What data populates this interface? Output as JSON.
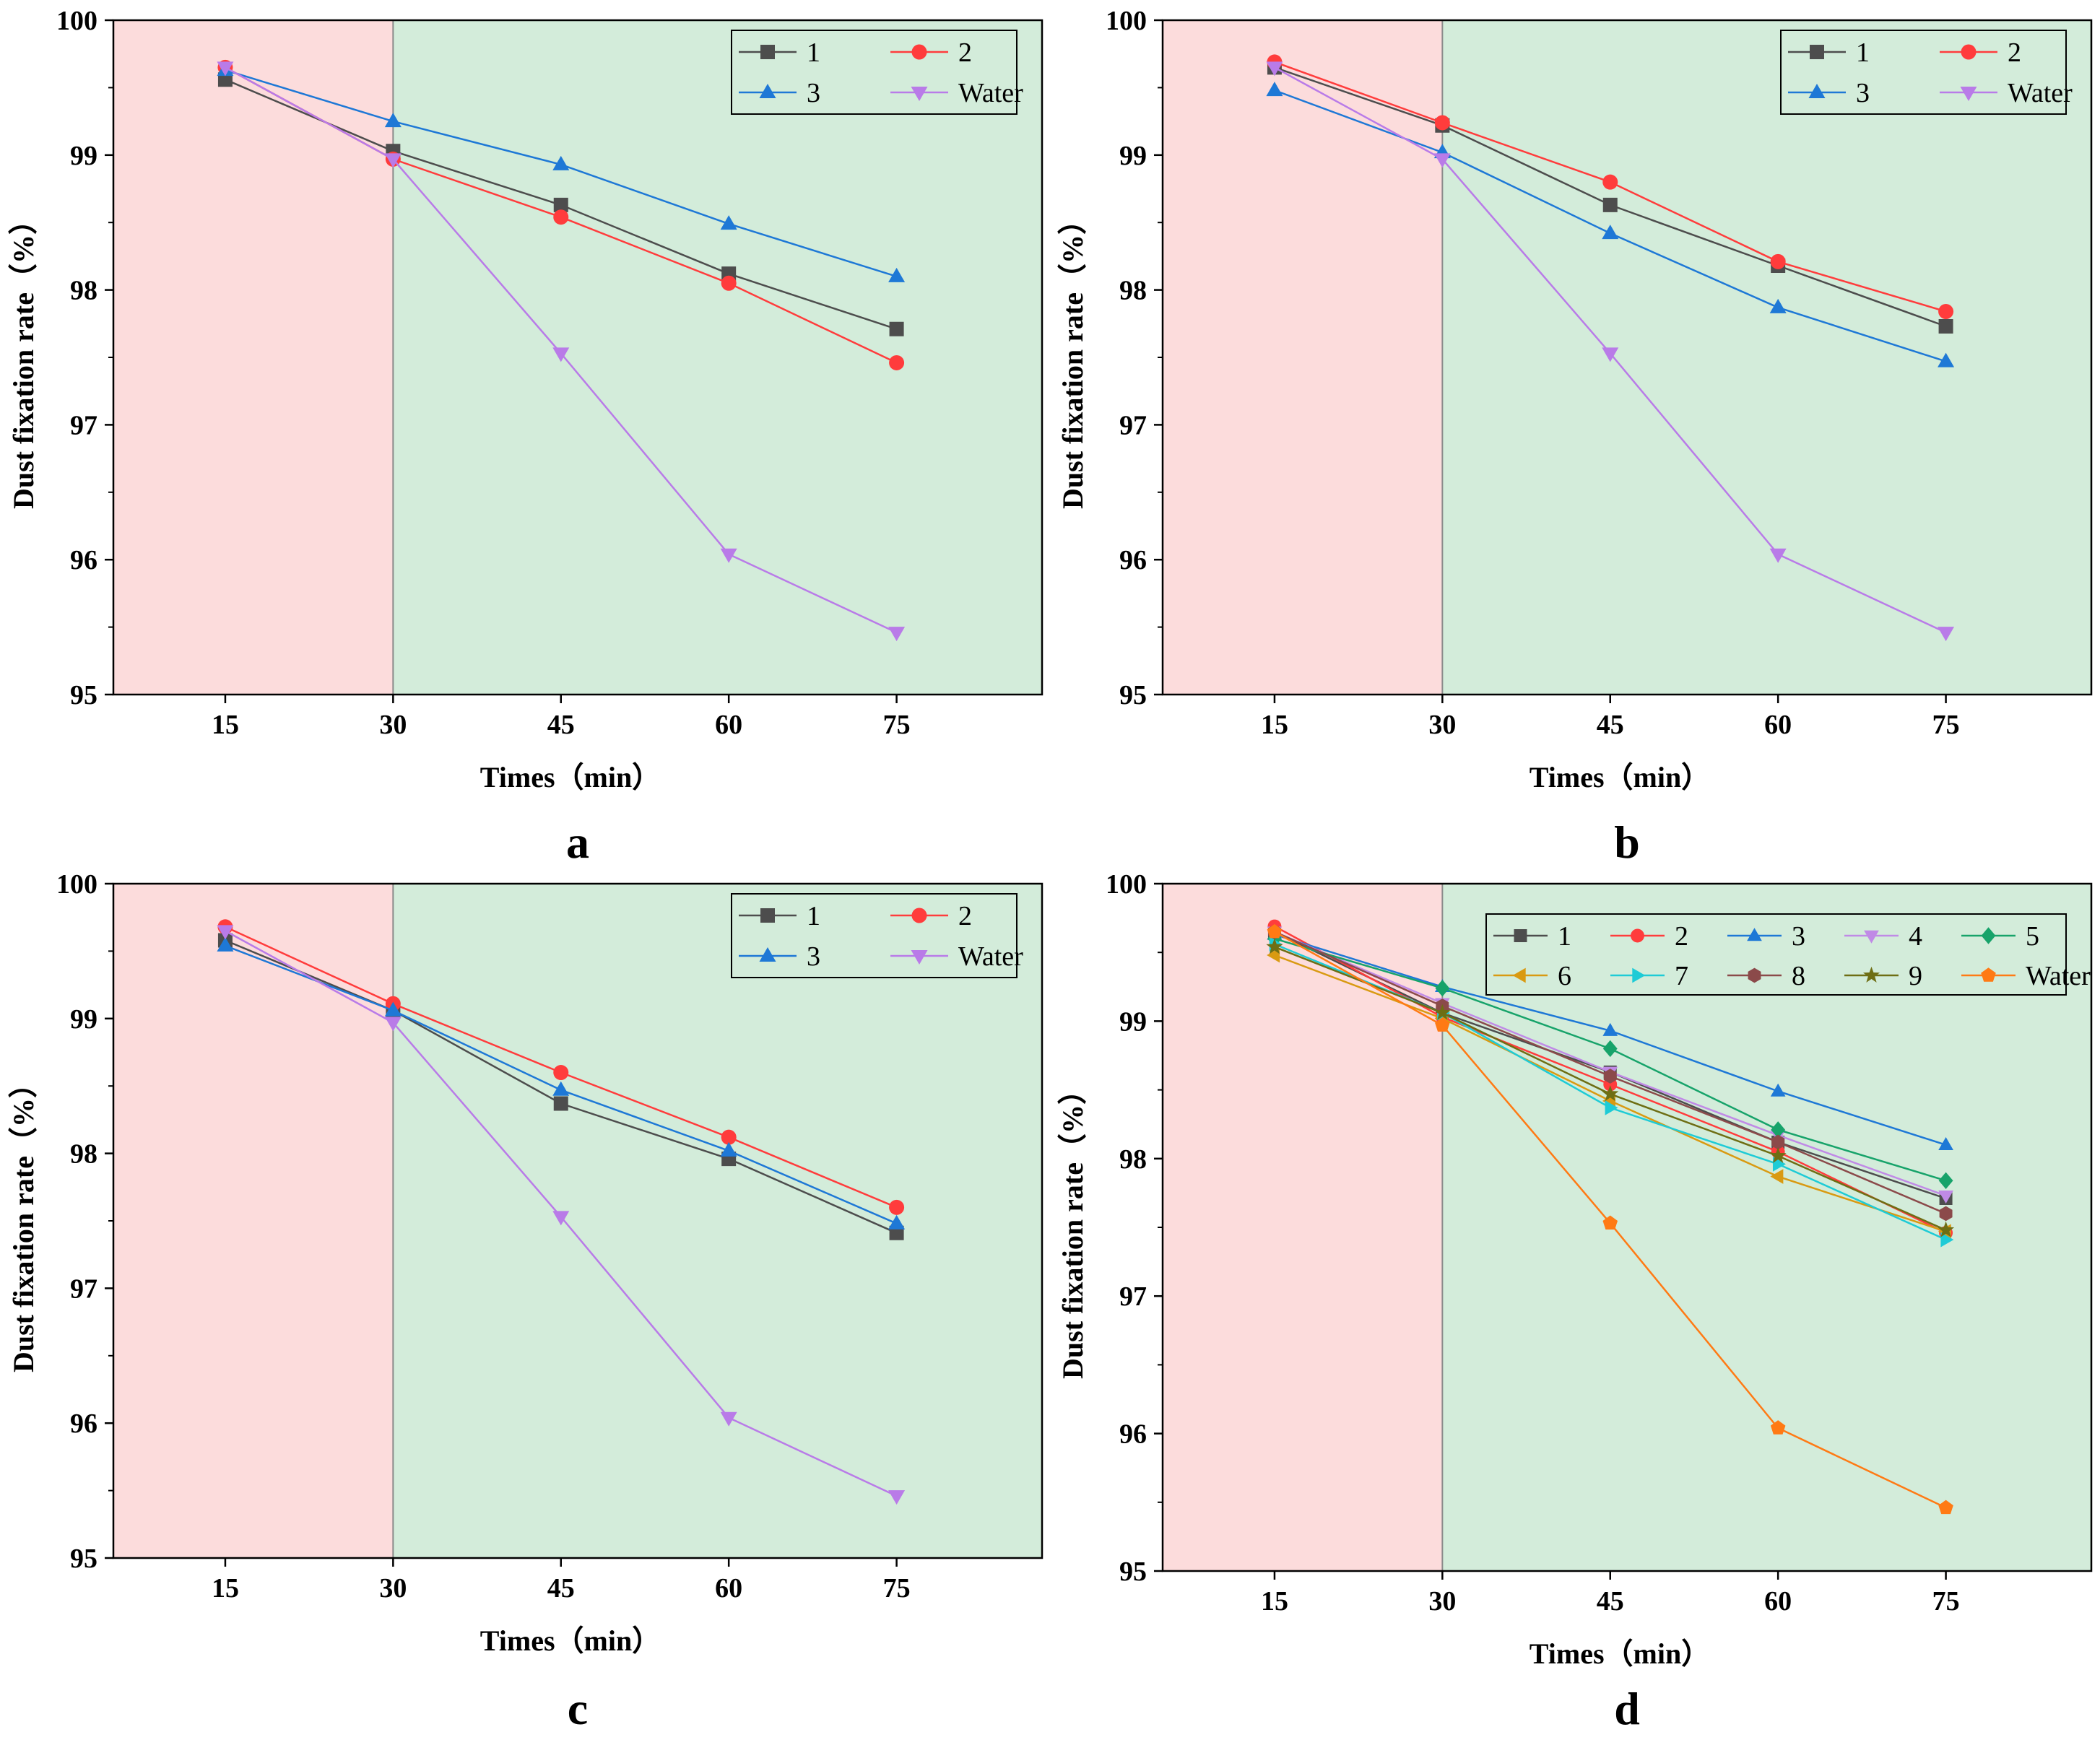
{
  "figure": {
    "chart_data": [
      {
        "panel": "a",
        "type": "line",
        "x": [
          15,
          30,
          45,
          60,
          75
        ],
        "xlabel": "Times（min）",
        "ylabel": "Dust fixation rate（%）",
        "xticks": [
          "15",
          "30",
          "45",
          "60",
          "75"
        ],
        "yticks": [
          "95",
          "96",
          "97",
          "98",
          "99",
          "100"
        ],
        "xlim": [
          5,
          88
        ],
        "ylim": [
          95,
          100
        ],
        "shade": [
          {
            "from": 5,
            "to": 30,
            "color": "#fcdcdc"
          },
          {
            "from": 30,
            "to": 88,
            "color": "#d3ecda"
          }
        ],
        "divider_x": 30,
        "legend_position": "top-right",
        "legend_columns": 2,
        "series": [
          {
            "name": "1",
            "color": "#4d4d4d",
            "marker": "square",
            "values": [
              99.56,
              99.03,
              98.63,
              98.12,
              97.71
            ]
          },
          {
            "name": "2",
            "color": "#ff3c3c",
            "marker": "circle",
            "values": [
              99.65,
              98.97,
              98.54,
              98.05,
              97.46
            ]
          },
          {
            "name": "3",
            "color": "#1e78d6",
            "marker": "triangle-up",
            "values": [
              99.63,
              99.25,
              98.93,
              98.49,
              98.1
            ]
          },
          {
            "name": "Water",
            "color": "#b97be8",
            "marker": "triangle-down",
            "values": [
              99.65,
              98.97,
              97.53,
              96.04,
              95.46
            ]
          }
        ]
      },
      {
        "panel": "b",
        "type": "line",
        "x": [
          15,
          30,
          45,
          60,
          75
        ],
        "xlabel": "Times（min）",
        "ylabel": "Dust fixation rate（%）",
        "xticks": [
          "15",
          "30",
          "45",
          "60",
          "75"
        ],
        "yticks": [
          "95",
          "96",
          "97",
          "98",
          "99",
          "100"
        ],
        "xlim": [
          5,
          88
        ],
        "ylim": [
          95,
          100
        ],
        "shade": [
          {
            "from": 5,
            "to": 30,
            "color": "#fcdcdc"
          },
          {
            "from": 30,
            "to": 88,
            "color": "#d3ecda"
          }
        ],
        "divider_x": 30,
        "legend_position": "top-right",
        "legend_columns": 2,
        "series": [
          {
            "name": "1",
            "color": "#4d4d4d",
            "marker": "square",
            "values": [
              99.65,
              99.22,
              98.63,
              98.18,
              97.73
            ]
          },
          {
            "name": "2",
            "color": "#ff3c3c",
            "marker": "circle",
            "values": [
              99.69,
              99.24,
              98.8,
              98.21,
              97.84
            ]
          },
          {
            "name": "3",
            "color": "#1e78d6",
            "marker": "triangle-up",
            "values": [
              99.48,
              99.02,
              98.42,
              97.87,
              97.47
            ]
          },
          {
            "name": "Water",
            "color": "#b97be8",
            "marker": "triangle-down",
            "values": [
              99.65,
              98.97,
              97.53,
              96.04,
              95.46
            ]
          }
        ]
      },
      {
        "panel": "c",
        "type": "line",
        "x": [
          15,
          30,
          45,
          60,
          75
        ],
        "xlabel": "Times（min）",
        "ylabel": "Dust fixation rate（%）",
        "xticks": [
          "15",
          "30",
          "45",
          "60",
          "75"
        ],
        "yticks": [
          "95",
          "96",
          "97",
          "98",
          "99",
          "100"
        ],
        "xlim": [
          5,
          88
        ],
        "ylim": [
          95,
          100
        ],
        "shade": [
          {
            "from": 5,
            "to": 30,
            "color": "#fcdcdc"
          },
          {
            "from": 30,
            "to": 88,
            "color": "#d3ecda"
          }
        ],
        "divider_x": 30,
        "legend_position": "top-right",
        "legend_columns": 2,
        "series": [
          {
            "name": "1",
            "color": "#4d4d4d",
            "marker": "square",
            "values": [
              99.58,
              99.06,
              98.37,
              97.96,
              97.41
            ]
          },
          {
            "name": "2",
            "color": "#ff3c3c",
            "marker": "circle",
            "values": [
              99.68,
              99.11,
              98.6,
              98.12,
              97.6
            ]
          },
          {
            "name": "3",
            "color": "#1e78d6",
            "marker": "triangle-up",
            "values": [
              99.54,
              99.06,
              98.47,
              98.02,
              97.48
            ]
          },
          {
            "name": "Water",
            "color": "#b97be8",
            "marker": "triangle-down",
            "values": [
              99.65,
              98.97,
              97.53,
              96.04,
              95.46
            ]
          }
        ]
      },
      {
        "panel": "d",
        "type": "line",
        "x": [
          15,
          30,
          45,
          60,
          75
        ],
        "xlabel": "Times（min）",
        "ylabel": "Dust fixation rate（%）",
        "xticks": [
          "15",
          "30",
          "45",
          "60",
          "75"
        ],
        "yticks": [
          "95",
          "96",
          "97",
          "98",
          "99",
          "100"
        ],
        "xlim": [
          5,
          88
        ],
        "ylim": [
          95,
          100
        ],
        "shade": [
          {
            "from": 5,
            "to": 30,
            "color": "#fcdcdc"
          },
          {
            "from": 30,
            "to": 88,
            "color": "#d3ecda"
          }
        ],
        "divider_x": 30,
        "legend_position": "top-right",
        "legend_columns": 5,
        "series": [
          {
            "name": "1",
            "color": "#4d4d4d",
            "marker": "square",
            "values": [
              99.65,
              99.06,
              98.63,
              98.12,
              97.71
            ]
          },
          {
            "name": "2",
            "color": "#ff3c3c",
            "marker": "circle",
            "values": [
              99.69,
              99.03,
              98.54,
              98.05,
              97.46
            ]
          },
          {
            "name": "3",
            "color": "#1e78d6",
            "marker": "triangle-up",
            "values": [
              99.63,
              99.25,
              98.93,
              98.49,
              98.1
            ]
          },
          {
            "name": "4",
            "color": "#c08ae6",
            "marker": "triangle-down",
            "values": [
              99.65,
              99.13,
              98.63,
              98.17,
              97.73
            ]
          },
          {
            "name": "5",
            "color": "#17a36a",
            "marker": "diamond",
            "values": [
              99.6,
              99.24,
              98.8,
              98.21,
              97.84
            ]
          },
          {
            "name": "6",
            "color": "#d99a12",
            "marker": "triangle-left",
            "values": [
              99.48,
              99.02,
              98.42,
              97.87,
              97.47
            ]
          },
          {
            "name": "7",
            "color": "#1ecbd6",
            "marker": "triangle-right",
            "values": [
              99.56,
              99.06,
              98.37,
              97.96,
              97.41
            ]
          },
          {
            "name": "8",
            "color": "#8b4a4a",
            "marker": "hexagon",
            "values": [
              99.65,
              99.11,
              98.6,
              98.12,
              97.6
            ]
          },
          {
            "name": "9",
            "color": "#6e6e14",
            "marker": "star",
            "values": [
              99.54,
              99.06,
              98.47,
              98.02,
              97.48
            ]
          },
          {
            "name": "Water",
            "color": "#ff7a14",
            "marker": "pentagon",
            "values": [
              99.65,
              98.97,
              97.53,
              96.04,
              95.46
            ]
          }
        ]
      }
    ]
  }
}
